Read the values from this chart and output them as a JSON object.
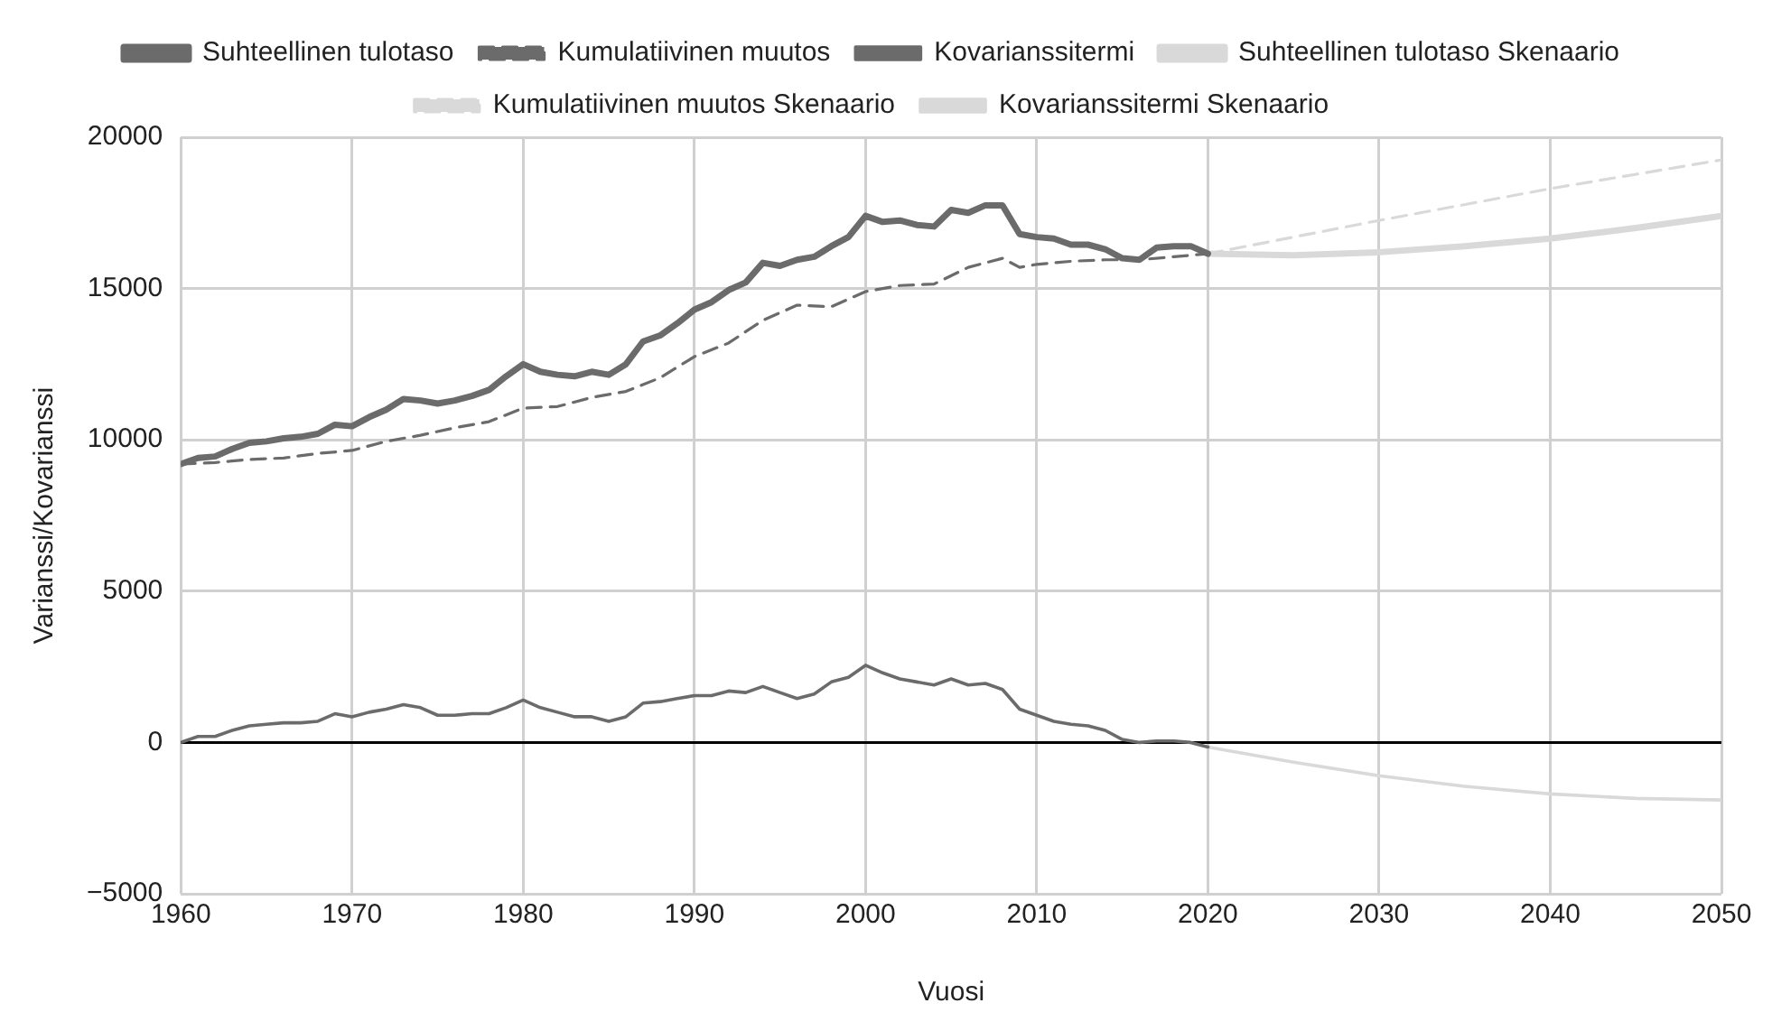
{
  "chart_data": {
    "type": "line",
    "xlabel": "Vuosi",
    "ylabel": "Varianssi/Kovarianssi",
    "xlim": [
      1960,
      2050
    ],
    "xticks": [
      1960,
      1970,
      1980,
      1990,
      2000,
      2010,
      2020,
      2030,
      2040,
      2050
    ],
    "ylim": [
      -5000,
      20000
    ],
    "yticks": [
      {
        "value": -5000,
        "label": "−5000"
      },
      0,
      5000,
      10000,
      15000,
      20000
    ],
    "grid": true,
    "legend": "top",
    "marker": "none",
    "ref_lines": [
      {
        "axis": "y",
        "value": 0,
        "color": "#000000"
      }
    ],
    "series": [
      {
        "name": "Suhteellinen tulotaso",
        "color": "#6b6b6b",
        "line_style": "solid",
        "x": [
          1960,
          1961,
          1962,
          1963,
          1964,
          1965,
          1966,
          1967,
          1968,
          1969,
          1970,
          1971,
          1972,
          1973,
          1974,
          1975,
          1976,
          1977,
          1978,
          1979,
          1980,
          1981,
          1982,
          1983,
          1984,
          1985,
          1986,
          1987,
          1988,
          1989,
          1990,
          1991,
          1992,
          1993,
          1994,
          1995,
          1996,
          1997,
          1998,
          1999,
          2000,
          2001,
          2002,
          2003,
          2004,
          2005,
          2006,
          2007,
          2008,
          2009,
          2010,
          2011,
          2012,
          2013,
          2014,
          2015,
          2016,
          2017,
          2018,
          2019,
          2020
        ],
        "values": [
          9200,
          9400,
          9450,
          9700,
          9900,
          9950,
          10050,
          10100,
          10200,
          10500,
          10450,
          10750,
          11000,
          11350,
          11300,
          11200,
          11300,
          11450,
          11650,
          12100,
          12500,
          12250,
          12150,
          12100,
          12250,
          12150,
          12500,
          13250,
          13450,
          13850,
          14300,
          14550,
          14950,
          15200,
          15850,
          15750,
          15950,
          16050,
          16400,
          16700,
          17400,
          17200,
          17250,
          17100,
          17050,
          17600,
          17500,
          17750,
          17750,
          16800,
          16700,
          16650,
          16450,
          16450,
          16300,
          16000,
          15950,
          16350,
          16400,
          16400,
          16150
        ]
      },
      {
        "name": "Kumulatiivinen muutos",
        "color": "#6b6b6b",
        "line_style": "dashed",
        "x": [
          1960,
          1962,
          1964,
          1966,
          1968,
          1970,
          1972,
          1974,
          1976,
          1978,
          1980,
          1982,
          1984,
          1986,
          1988,
          1990,
          1992,
          1994,
          1996,
          1998,
          2000,
          2002,
          2004,
          2006,
          2008,
          2009,
          2010,
          2012,
          2014,
          2016,
          2018,
          2020
        ],
        "values": [
          9200,
          9250,
          9350,
          9400,
          9550,
          9650,
          9950,
          10150,
          10400,
          10600,
          11050,
          11100,
          11400,
          11600,
          12050,
          12750,
          13200,
          13950,
          14450,
          14400,
          14900,
          15100,
          15150,
          15700,
          16000,
          15700,
          15800,
          15900,
          15950,
          15950,
          16050,
          16150
        ]
      },
      {
        "name": "Kovarianssitermi",
        "color": "#6b6b6b",
        "line_style": "solid",
        "x": [
          1960,
          1961,
          1962,
          1963,
          1964,
          1965,
          1966,
          1967,
          1968,
          1969,
          1970,
          1971,
          1972,
          1973,
          1974,
          1975,
          1976,
          1977,
          1978,
          1979,
          1980,
          1981,
          1982,
          1983,
          1984,
          1985,
          1986,
          1987,
          1988,
          1989,
          1990,
          1991,
          1992,
          1993,
          1994,
          1995,
          1996,
          1997,
          1998,
          1999,
          2000,
          2001,
          2002,
          2003,
          2004,
          2005,
          2006,
          2007,
          2008,
          2009,
          2010,
          2011,
          2012,
          2013,
          2014,
          2015,
          2016,
          2017,
          2018,
          2019,
          2020
        ],
        "values": [
          0,
          200,
          200,
          400,
          550,
          600,
          650,
          650,
          700,
          950,
          850,
          1000,
          1100,
          1250,
          1150,
          900,
          900,
          950,
          950,
          1150,
          1400,
          1150,
          1000,
          850,
          850,
          700,
          850,
          1300,
          1350,
          1450,
          1550,
          1550,
          1700,
          1650,
          1850,
          1650,
          1450,
          1600,
          2000,
          2150,
          2550,
          2300,
          2100,
          2000,
          1900,
          2100,
          1900,
          1950,
          1750,
          1100,
          900,
          700,
          600,
          550,
          400,
          100,
          0,
          50,
          50,
          0,
          -150
        ]
      },
      {
        "name": "Suhteellinen tulotaso Skenaario",
        "color": "#d9d9d9",
        "line_style": "solid",
        "x": [
          2020,
          2025,
          2030,
          2035,
          2040,
          2045,
          2050
        ],
        "values": [
          16150,
          16100,
          16200,
          16400,
          16650,
          17000,
          17400
        ]
      },
      {
        "name": "Kumulatiivinen muutos Skenaario",
        "color": "#d9d9d9",
        "line_style": "dashed",
        "x": [
          2020,
          2030,
          2040,
          2050
        ],
        "values": [
          16150,
          17250,
          18300,
          19250
        ]
      },
      {
        "name": "Kovarianssitermi Skenaario",
        "color": "#d9d9d9",
        "line_style": "solid",
        "x": [
          2020,
          2025,
          2030,
          2035,
          2040,
          2045,
          2050
        ],
        "values": [
          -150,
          -650,
          -1100,
          -1450,
          -1700,
          -1850,
          -1900
        ]
      }
    ]
  }
}
